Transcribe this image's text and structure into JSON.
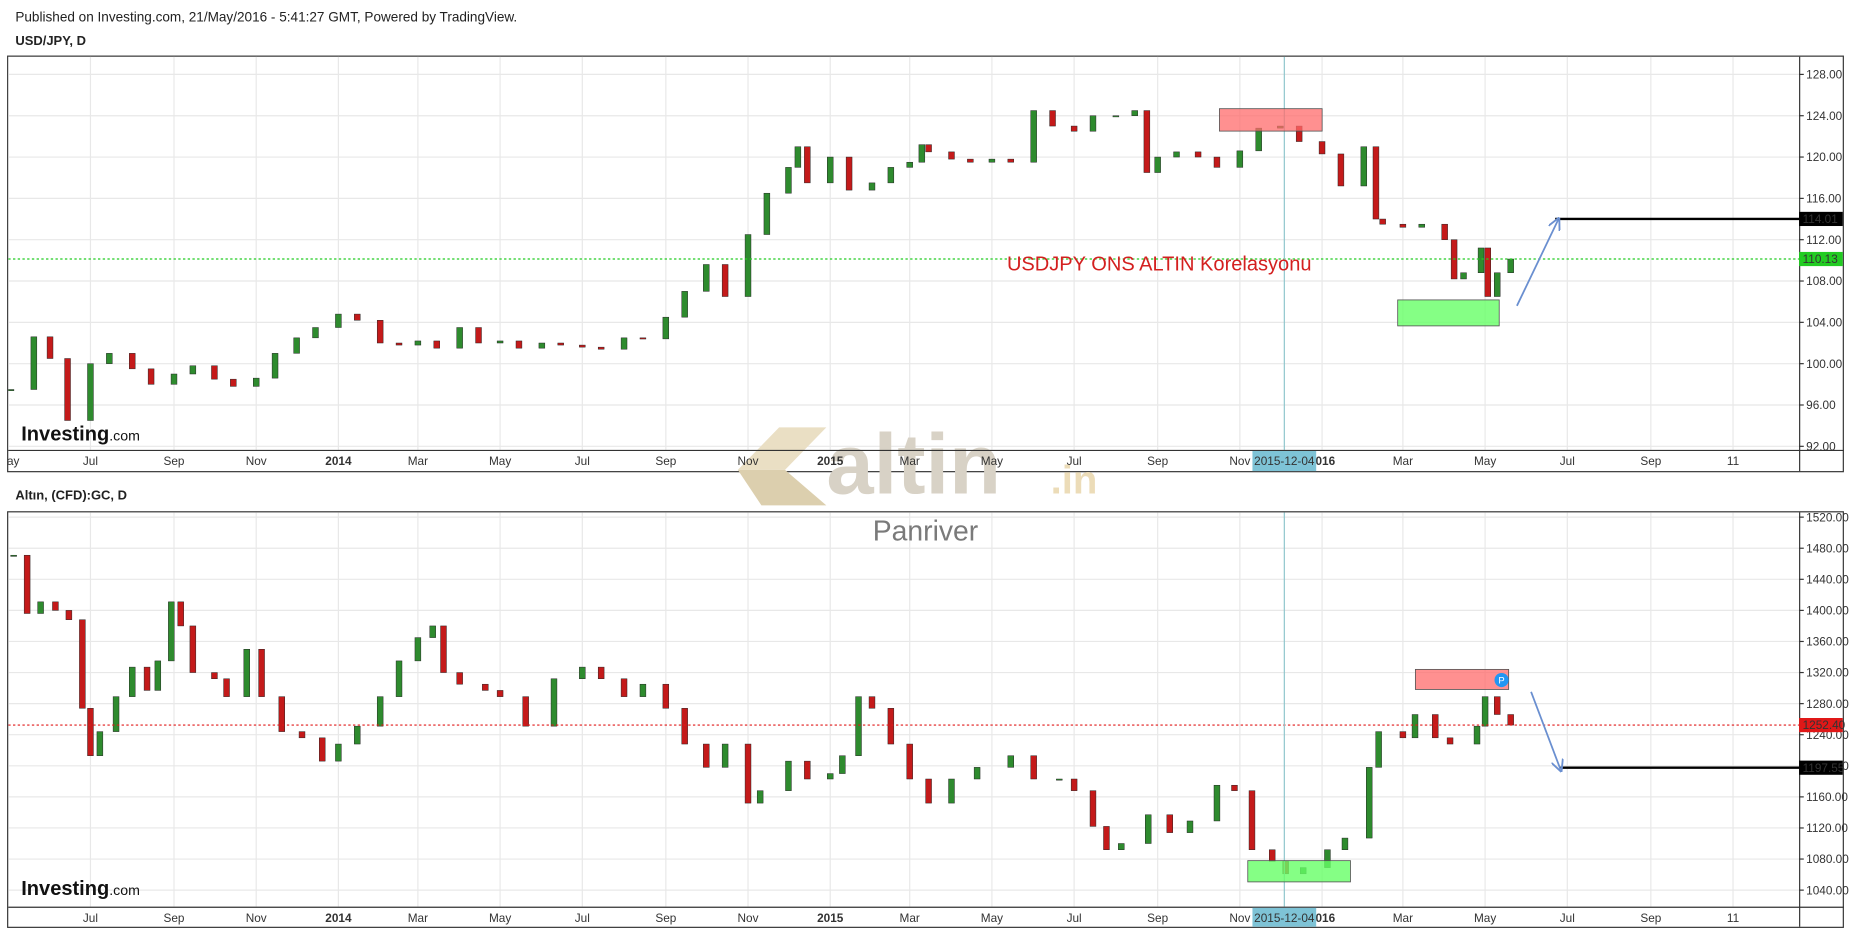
{
  "header": "Published on Investing.com, 21/May/2016 - 5:41:27 GMT, Powered by TradingView.",
  "watermark": {
    "brand": "altin",
    "tld": ".in",
    "author": "Panriver"
  },
  "logo": {
    "name": "Investing",
    "suffix": ".com"
  },
  "chart_data": [
    {
      "type": "candlestick",
      "title": "USD/JPY, D",
      "annotation": "USDJPY ONS ALTIN Korelasyonu",
      "crosshair": "2015-12-04",
      "up_color": "#2e8b2e",
      "down_color": "#c41a1a",
      "grid": true,
      "xlim": [
        "2013-05-01",
        "2016-12-20"
      ],
      "xticks": [
        {
          "value": "2013-05-01",
          "label": "May"
        },
        {
          "value": "2013-07-01",
          "label": "Jul"
        },
        {
          "value": "2013-09-01",
          "label": "Sep"
        },
        {
          "value": "2013-11-01",
          "label": "Nov"
        },
        {
          "value": "2014-01-01",
          "label": "2014"
        },
        {
          "value": "2014-03-01",
          "label": "Mar"
        },
        {
          "value": "2014-05-01",
          "label": "May"
        },
        {
          "value": "2014-07-01",
          "label": "Jul"
        },
        {
          "value": "2014-09-01",
          "label": "Sep"
        },
        {
          "value": "2014-11-01",
          "label": "Nov"
        },
        {
          "value": "2015-01-01",
          "label": "2015"
        },
        {
          "value": "2015-03-01",
          "label": "Mar"
        },
        {
          "value": "2015-05-01",
          "label": "May"
        },
        {
          "value": "2015-07-01",
          "label": "Jul"
        },
        {
          "value": "2015-09-01",
          "label": "Sep"
        },
        {
          "value": "2015-11-01",
          "label": "Nov"
        },
        {
          "value": "2016-01-01",
          "label": "2016"
        },
        {
          "value": "2016-03-01",
          "label": "Mar"
        },
        {
          "value": "2016-05-01",
          "label": "May"
        },
        {
          "value": "2016-07-01",
          "label": "Jul"
        },
        {
          "value": "2016-09-01",
          "label": "Sep"
        },
        {
          "value": "2016-11-01",
          "label": "11"
        }
      ],
      "ylim": [
        91.66,
        129.71
      ],
      "yticks": [
        {
          "value": 92,
          "label": "92.00"
        },
        {
          "value": 96,
          "label": "96.00"
        },
        {
          "value": 100,
          "label": "100.00"
        },
        {
          "value": 104,
          "label": "104.00"
        },
        {
          "value": 108,
          "label": "108.00"
        },
        {
          "value": 112,
          "label": "112.00"
        },
        {
          "value": 116,
          "label": "116.00"
        },
        {
          "value": 120,
          "label": "120.00"
        },
        {
          "value": 124,
          "label": "124.00"
        },
        {
          "value": 128,
          "label": "128.00"
        }
      ],
      "price_lines": [
        {
          "value": 110.13,
          "color": "#22cc22",
          "style": "dotted"
        },
        {
          "value": 114.01,
          "color": "#000000",
          "from": "2016-06-22"
        }
      ],
      "x": [
        "2013-05-03",
        "2013-05-20",
        "2013-06-01",
        "2013-06-14",
        "2013-07-01",
        "2013-07-15",
        "2013-08-01",
        "2013-08-15",
        "2013-09-01",
        "2013-09-15",
        "2013-10-01",
        "2013-10-15",
        "2013-11-01",
        "2013-11-15",
        "2013-12-01",
        "2013-12-15",
        "2014-01-01",
        "2014-01-15",
        "2014-02-01",
        "2014-02-15",
        "2014-03-01",
        "2014-03-15",
        "2014-04-01",
        "2014-04-15",
        "2014-05-01",
        "2014-05-15",
        "2014-06-01",
        "2014-06-15",
        "2014-07-01",
        "2014-07-15",
        "2014-08-01",
        "2014-08-15",
        "2014-09-01",
        "2014-09-15",
        "2014-10-01",
        "2014-10-15",
        "2014-11-01",
        "2014-11-15",
        "2014-12-01",
        "2014-12-08",
        "2014-12-15",
        "2015-01-01",
        "2015-01-15",
        "2015-02-01",
        "2015-02-15",
        "2015-03-01",
        "2015-03-10",
        "2015-03-15",
        "2015-04-01",
        "2015-04-15",
        "2015-05-01",
        "2015-05-15",
        "2015-06-01",
        "2015-06-15",
        "2015-07-01",
        "2015-07-15",
        "2015-08-01",
        "2015-08-15",
        "2015-08-24",
        "2015-09-01",
        "2015-09-15",
        "2015-10-01",
        "2015-10-15",
        "2015-11-01",
        "2015-11-15",
        "2015-12-01",
        "2015-12-15",
        "2016-01-01",
        "2016-01-15",
        "2016-02-01",
        "2016-02-10",
        "2016-02-15",
        "2016-03-01",
        "2016-03-15",
        "2016-04-01",
        "2016-04-08",
        "2016-04-15",
        "2016-04-28",
        "2016-05-03",
        "2016-05-10",
        "2016-05-20"
      ],
      "values": [
        97.5,
        102.6,
        100.5,
        94.5,
        100.0,
        101.0,
        99.5,
        98.0,
        99.0,
        99.8,
        98.5,
        97.8,
        98.6,
        101.0,
        102.5,
        103.5,
        104.8,
        104.2,
        102.0,
        101.8,
        102.2,
        101.5,
        103.5,
        102.0,
        102.2,
        101.5,
        102.0,
        101.8,
        101.6,
        101.4,
        102.5,
        102.4,
        104.5,
        107.0,
        109.6,
        106.5,
        112.5,
        116.5,
        119.0,
        121.0,
        117.5,
        120.0,
        116.8,
        117.5,
        119.0,
        119.5,
        121.2,
        120.5,
        119.8,
        119.5,
        119.8,
        119.5,
        124.5,
        123.0,
        122.5,
        124.0,
        124.0,
        124.5,
        118.5,
        120.0,
        120.5,
        120.0,
        119.0,
        120.6,
        122.8,
        123.0,
        121.5,
        120.3,
        117.2,
        121.0,
        114.0,
        113.5,
        113.2,
        113.5,
        112.0,
        108.2,
        108.8,
        111.2,
        106.5,
        108.8,
        110.13
      ]
    },
    {
      "type": "candlestick",
      "title": "Altın, (CFD):GC, D",
      "crosshair": "2015-12-04",
      "marker": "P",
      "up_color": "#2e8b2e",
      "down_color": "#c41a1a",
      "grid": true,
      "xlim": [
        "2013-05-01",
        "2016-12-20"
      ],
      "xticks": [
        {
          "value": "2013-07-01",
          "label": "Jul"
        },
        {
          "value": "2013-09-01",
          "label": "Sep"
        },
        {
          "value": "2013-11-01",
          "label": "Nov"
        },
        {
          "value": "2014-01-01",
          "label": "2014"
        },
        {
          "value": "2014-03-01",
          "label": "Mar"
        },
        {
          "value": "2014-05-01",
          "label": "May"
        },
        {
          "value": "2014-07-01",
          "label": "Jul"
        },
        {
          "value": "2014-09-01",
          "label": "Sep"
        },
        {
          "value": "2014-11-01",
          "label": "Nov"
        },
        {
          "value": "2015-01-01",
          "label": "2015"
        },
        {
          "value": "2015-03-01",
          "label": "Mar"
        },
        {
          "value": "2015-05-01",
          "label": "May"
        },
        {
          "value": "2015-07-01",
          "label": "Jul"
        },
        {
          "value": "2015-09-01",
          "label": "Sep"
        },
        {
          "value": "2015-11-01",
          "label": "Nov"
        },
        {
          "value": "2016-01-01",
          "label": "2016"
        },
        {
          "value": "2016-03-01",
          "label": "Mar"
        },
        {
          "value": "2016-05-01",
          "label": "May"
        },
        {
          "value": "2016-07-01",
          "label": "Jul"
        },
        {
          "value": "2016-09-01",
          "label": "Sep"
        },
        {
          "value": "2016-11-01",
          "label": "11"
        }
      ],
      "ylim": [
        1018.7,
        1526.1
      ],
      "yticks": [
        {
          "value": 1040,
          "label": "1040.00"
        },
        {
          "value": 1080,
          "label": "1080.00"
        },
        {
          "value": 1120,
          "label": "1120.00"
        },
        {
          "value": 1160,
          "label": "1160.00"
        },
        {
          "value": 1200,
          "label": "1200.00"
        },
        {
          "value": 1240,
          "label": "1240.00"
        },
        {
          "value": 1280,
          "label": "1280.00"
        },
        {
          "value": 1320,
          "label": "1320.00"
        },
        {
          "value": 1360,
          "label": "1360.00"
        },
        {
          "value": 1400,
          "label": "1400.00"
        },
        {
          "value": 1440,
          "label": "1440.00"
        },
        {
          "value": 1480,
          "label": "1480.00"
        },
        {
          "value": 1520,
          "label": "1520.00"
        }
      ],
      "price_lines": [
        {
          "value": 1252.4,
          "label": "1252.40",
          "color": "#e01818",
          "style": "dotted"
        },
        {
          "value": 1197.55,
          "color": "#000000",
          "from": "2016-06-26"
        }
      ],
      "x": [
        "2013-05-05",
        "2013-05-15",
        "2013-05-25",
        "2013-06-05",
        "2013-06-15",
        "2013-06-25",
        "2013-07-01",
        "2013-07-08",
        "2013-07-20",
        "2013-08-01",
        "2013-08-12",
        "2013-08-20",
        "2013-08-30",
        "2013-09-06",
        "2013-09-15",
        "2013-10-01",
        "2013-10-10",
        "2013-10-25",
        "2013-11-05",
        "2013-11-20",
        "2013-12-05",
        "2013-12-20",
        "2014-01-01",
        "2014-01-15",
        "2014-02-01",
        "2014-02-15",
        "2014-03-01",
        "2014-03-12",
        "2014-03-20",
        "2014-04-01",
        "2014-04-20",
        "2014-05-01",
        "2014-05-20",
        "2014-06-10",
        "2014-07-01",
        "2014-07-15",
        "2014-08-01",
        "2014-08-15",
        "2014-09-01",
        "2014-09-15",
        "2014-10-01",
        "2014-10-15",
        "2014-11-01",
        "2014-11-10",
        "2014-12-01",
        "2014-12-15",
        "2015-01-01",
        "2015-01-10",
        "2015-01-22",
        "2015-02-01",
        "2015-02-15",
        "2015-03-01",
        "2015-03-15",
        "2015-04-01",
        "2015-04-20",
        "2015-05-15",
        "2015-06-01",
        "2015-06-20",
        "2015-07-01",
        "2015-07-15",
        "2015-07-25",
        "2015-08-05",
        "2015-08-25",
        "2015-09-10",
        "2015-09-25",
        "2015-10-15",
        "2015-10-28",
        "2015-11-10",
        "2015-11-25",
        "2015-12-05",
        "2015-12-18",
        "2016-01-05",
        "2016-01-18",
        "2016-02-05",
        "2016-02-12",
        "2016-03-01",
        "2016-03-10",
        "2016-03-25",
        "2016-04-05",
        "2016-04-25",
        "2016-05-01",
        "2016-05-10",
        "2016-05-20"
      ],
      "values": [
        1471,
        1396,
        1411,
        1400,
        1388,
        1274,
        1213,
        1244,
        1289,
        1327,
        1297,
        1335,
        1411,
        1380,
        1320,
        1312,
        1289,
        1350,
        1289,
        1244,
        1236,
        1206,
        1228,
        1251,
        1289,
        1335,
        1365,
        1380,
        1320,
        1305,
        1297,
        1289,
        1251,
        1312,
        1327,
        1312,
        1289,
        1305,
        1274,
        1228,
        1198,
        1228,
        1152,
        1168,
        1206,
        1183,
        1190,
        1213,
        1289,
        1274,
        1228,
        1183,
        1152,
        1183,
        1198,
        1213,
        1183,
        1183,
        1168,
        1122,
        1092,
        1100,
        1137,
        1114,
        1129,
        1175,
        1168,
        1092,
        1077,
        1061,
        1069,
        1092,
        1107,
        1198,
        1244,
        1236,
        1266,
        1236,
        1228,
        1251,
        1289,
        1266,
        1252.4
      ]
    }
  ]
}
